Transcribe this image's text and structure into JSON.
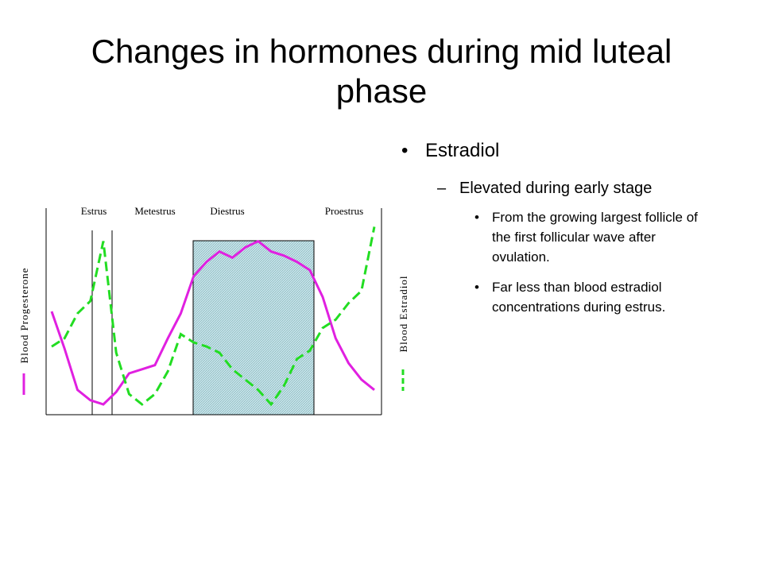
{
  "title": "Changes in hormones during mid luteal phase",
  "bullets": [
    {
      "text": "Estradiol",
      "children": [
        {
          "text": "Elevated during early stage",
          "children": [
            "From the growing largest follicle of the first follicular wave after ovulation.",
            "Far less than blood estradiol concentrations during estrus."
          ]
        }
      ]
    }
  ],
  "chart_data": {
    "type": "line",
    "annotations": [
      "Estrus",
      "Metestrus",
      "Diestrus",
      "Proestrus"
    ],
    "ylim": [
      0,
      100
    ],
    "series": [
      {
        "name": "Blood Progesterone",
        "color": "#e020e0",
        "dashed": false,
        "values": [
          50,
          32,
          12,
          7,
          5,
          11,
          20,
          22,
          24,
          37,
          49,
          67,
          74,
          79,
          76,
          81,
          84,
          79,
          77,
          74,
          70,
          57,
          37,
          25,
          17,
          12
        ]
      },
      {
        "name": "Blood Estradiol",
        "color": "#22dd22",
        "dashed": true,
        "axis": "y2",
        "values": [
          33,
          37,
          49,
          55,
          84,
          30,
          10,
          5,
          10,
          21,
          39,
          35,
          33,
          30,
          22,
          17,
          12,
          5,
          14,
          27,
          31,
          42,
          46,
          54,
          60,
          91
        ]
      }
    ]
  }
}
